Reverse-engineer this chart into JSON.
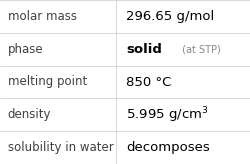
{
  "rows": [
    {
      "label": "molar mass",
      "value": "296.65 g/mol",
      "type": "plain"
    },
    {
      "label": "phase",
      "value": "solid",
      "type": "suffix",
      "suffix": " (at STP)"
    },
    {
      "label": "melting point",
      "value": "850 °C",
      "type": "plain"
    },
    {
      "label": "density",
      "value": "5.995 g/cm",
      "type": "super",
      "sup": "3"
    },
    {
      "label": "solubility in water",
      "value": "decomposes",
      "type": "plain"
    }
  ],
  "bg_color": "#ffffff",
  "grid_color": "#c8c8c8",
  "label_color": "#404040",
  "value_color": "#000000",
  "suffix_color": "#888888",
  "label_fontsize": 8.5,
  "value_fontsize": 9.5,
  "suffix_fontsize": 7.0,
  "col_split": 0.465
}
